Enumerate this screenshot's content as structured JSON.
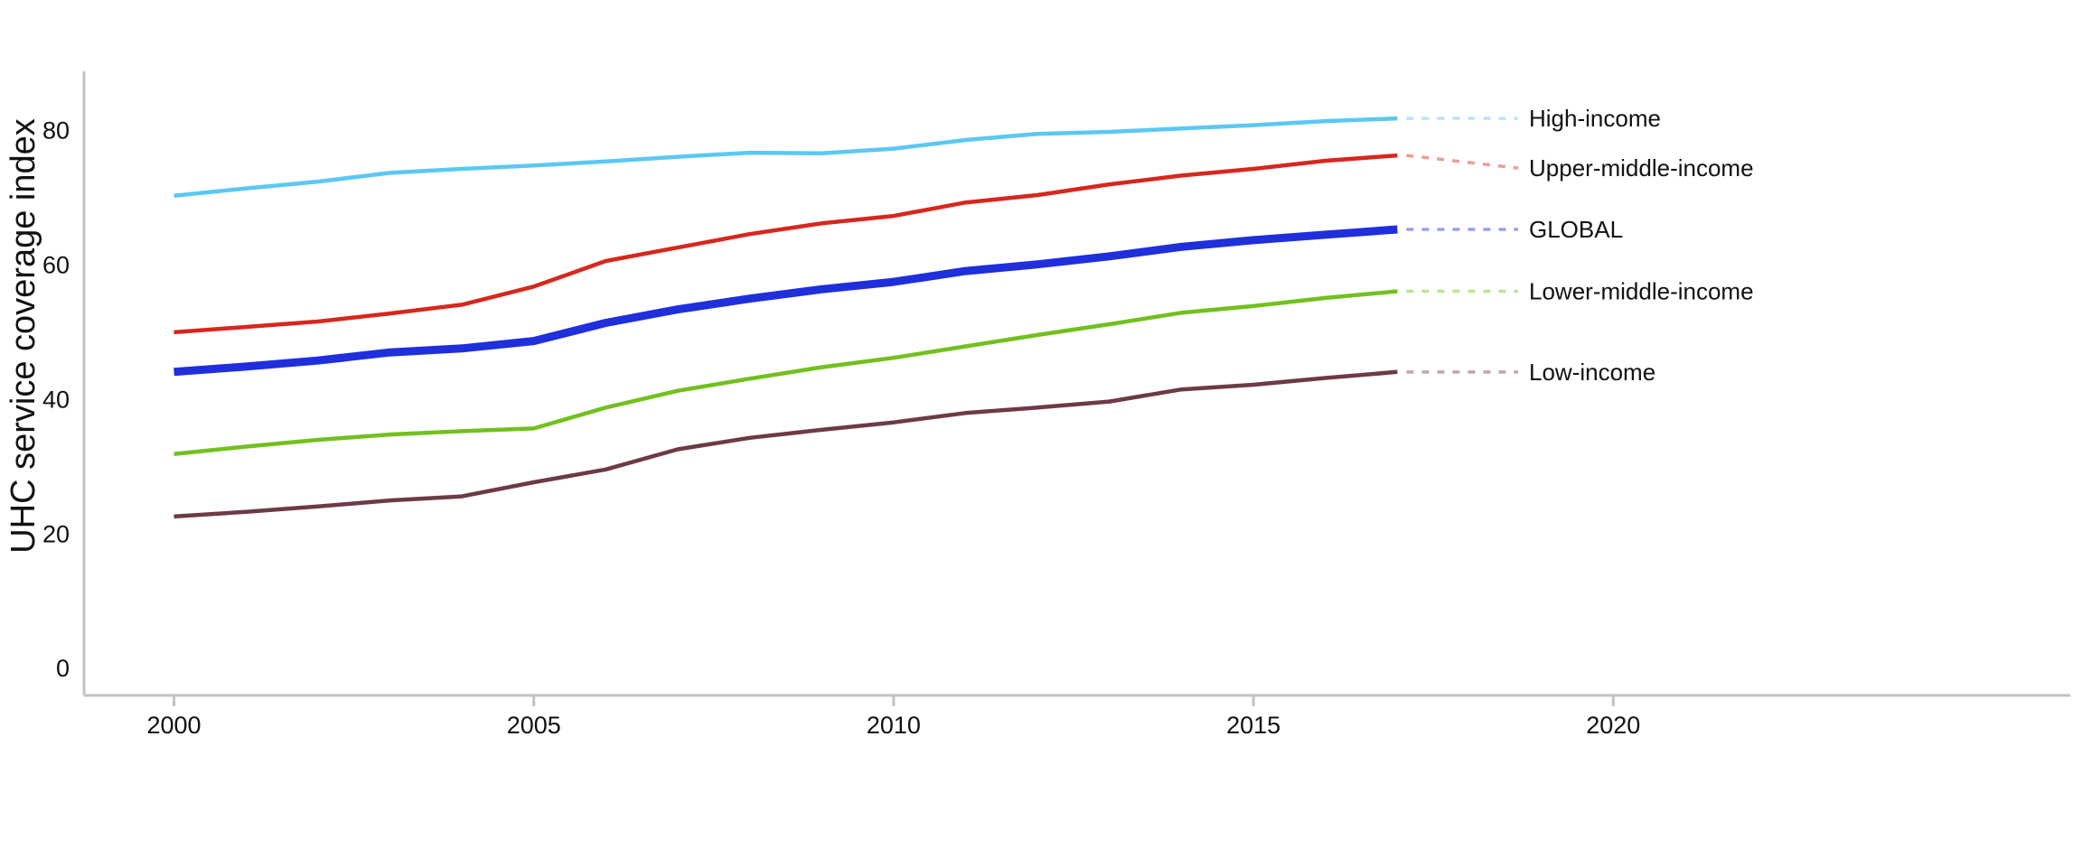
{
  "page": {
    "background": "#ffffff",
    "text_color": "#111111",
    "axis_color": "#c2c2c2"
  },
  "chart_data": {
    "type": "line",
    "title": "",
    "xlabel": "",
    "ylabel": "UHC service coverage index",
    "grid": false,
    "legend_position": "right-direct-labels",
    "xlim": [
      1998.75,
      2026.35
    ],
    "ylim": [
      -4,
      88.8
    ],
    "xticks": [
      2000,
      2005,
      2010,
      2015,
      2020
    ],
    "yticks": [
      0,
      20,
      40,
      60,
      80
    ],
    "x": [
      2000,
      2001,
      2002,
      2003,
      2004,
      2005,
      2006,
      2007,
      2008,
      2009,
      2010,
      2011,
      2012,
      2013,
      2014,
      2015,
      2016,
      2017
    ],
    "series": [
      {
        "name": "High-income",
        "color": "#5bc8f2",
        "line_width": 4.5,
        "values": [
          70.3,
          71.4,
          72.4,
          73.7,
          74.3,
          74.8,
          75.4,
          76.1,
          76.7,
          76.6,
          77.3,
          78.6,
          79.5,
          79.8,
          80.3,
          80.8,
          81.4,
          81.8
        ]
      },
      {
        "name": "Upper-middle-income",
        "color": "#d7271d",
        "line_width": 4.5,
        "values": [
          50.0,
          50.8,
          51.6,
          52.8,
          54.1,
          56.8,
          60.6,
          62.6,
          64.6,
          66.2,
          67.3,
          69.3,
          70.4,
          72.0,
          73.3,
          74.3,
          75.5,
          76.3
        ]
      },
      {
        "name": "GLOBAL",
        "color": "#1f2fdc",
        "line_width": 9,
        "values": [
          44.1,
          44.9,
          45.8,
          47.0,
          47.6,
          48.7,
          51.4,
          53.4,
          55.0,
          56.4,
          57.5,
          59.1,
          60.1,
          61.3,
          62.7,
          63.7,
          64.5,
          65.3
        ]
      },
      {
        "name": "Lower-middle-income",
        "color": "#72c01e",
        "line_width": 4.5,
        "values": [
          31.9,
          33.0,
          34.0,
          34.8,
          35.3,
          35.7,
          38.8,
          41.3,
          43.1,
          44.8,
          46.2,
          47.9,
          49.6,
          51.2,
          52.9,
          53.9,
          55.1,
          56.1
        ]
      },
      {
        "name": "Low-income",
        "color": "#6d3a46",
        "line_width": 4.5,
        "values": [
          22.6,
          23.3,
          24.1,
          25.0,
          25.6,
          27.7,
          29.6,
          32.6,
          34.3,
          35.5,
          36.6,
          38.0,
          38.8,
          39.7,
          41.5,
          42.2,
          43.2,
          44.1
        ]
      }
    ]
  }
}
